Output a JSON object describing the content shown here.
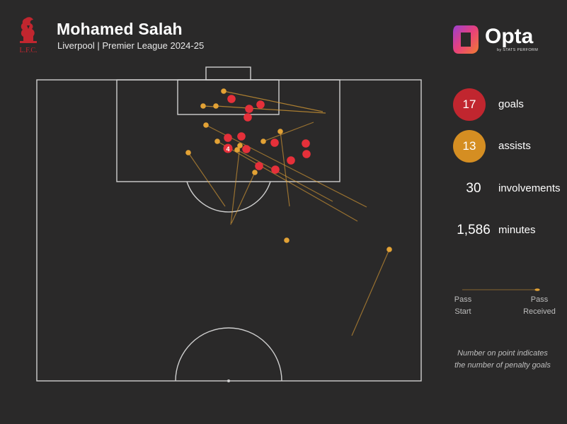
{
  "header": {
    "title": "Mohamed Salah",
    "subtitle": "Liverpool | Premier League 2024-25",
    "crest_text": "L.F.C.",
    "crest_color": "#c1262f"
  },
  "brand": {
    "name": "Opta",
    "sub": "by STATS PERFORM",
    "colors": [
      "#e8417a",
      "#f07d30",
      "#9b3fd1"
    ]
  },
  "stats": {
    "goals": {
      "value": "17",
      "label": "goals",
      "color": "#c1262f"
    },
    "assists": {
      "value": "13",
      "label": "assists",
      "color": "#d58e22"
    },
    "involvements": {
      "value": "30",
      "label": "involvements"
    },
    "minutes": {
      "value": "1,586",
      "label": "minutes"
    }
  },
  "legend": {
    "start_line1": "Pass",
    "start_line2": "Start",
    "end_line1": "Pass",
    "end_line2": "Received",
    "note_line1": "Number on point indicates",
    "note_line2": "the number of penalty goals"
  },
  "colors": {
    "background": "#2a2929",
    "pitch_lines": "#cfcfcf",
    "goal_color": "#e5303a",
    "assist_color": "#e3a235"
  },
  "penalty_goals_label": "4"
}
